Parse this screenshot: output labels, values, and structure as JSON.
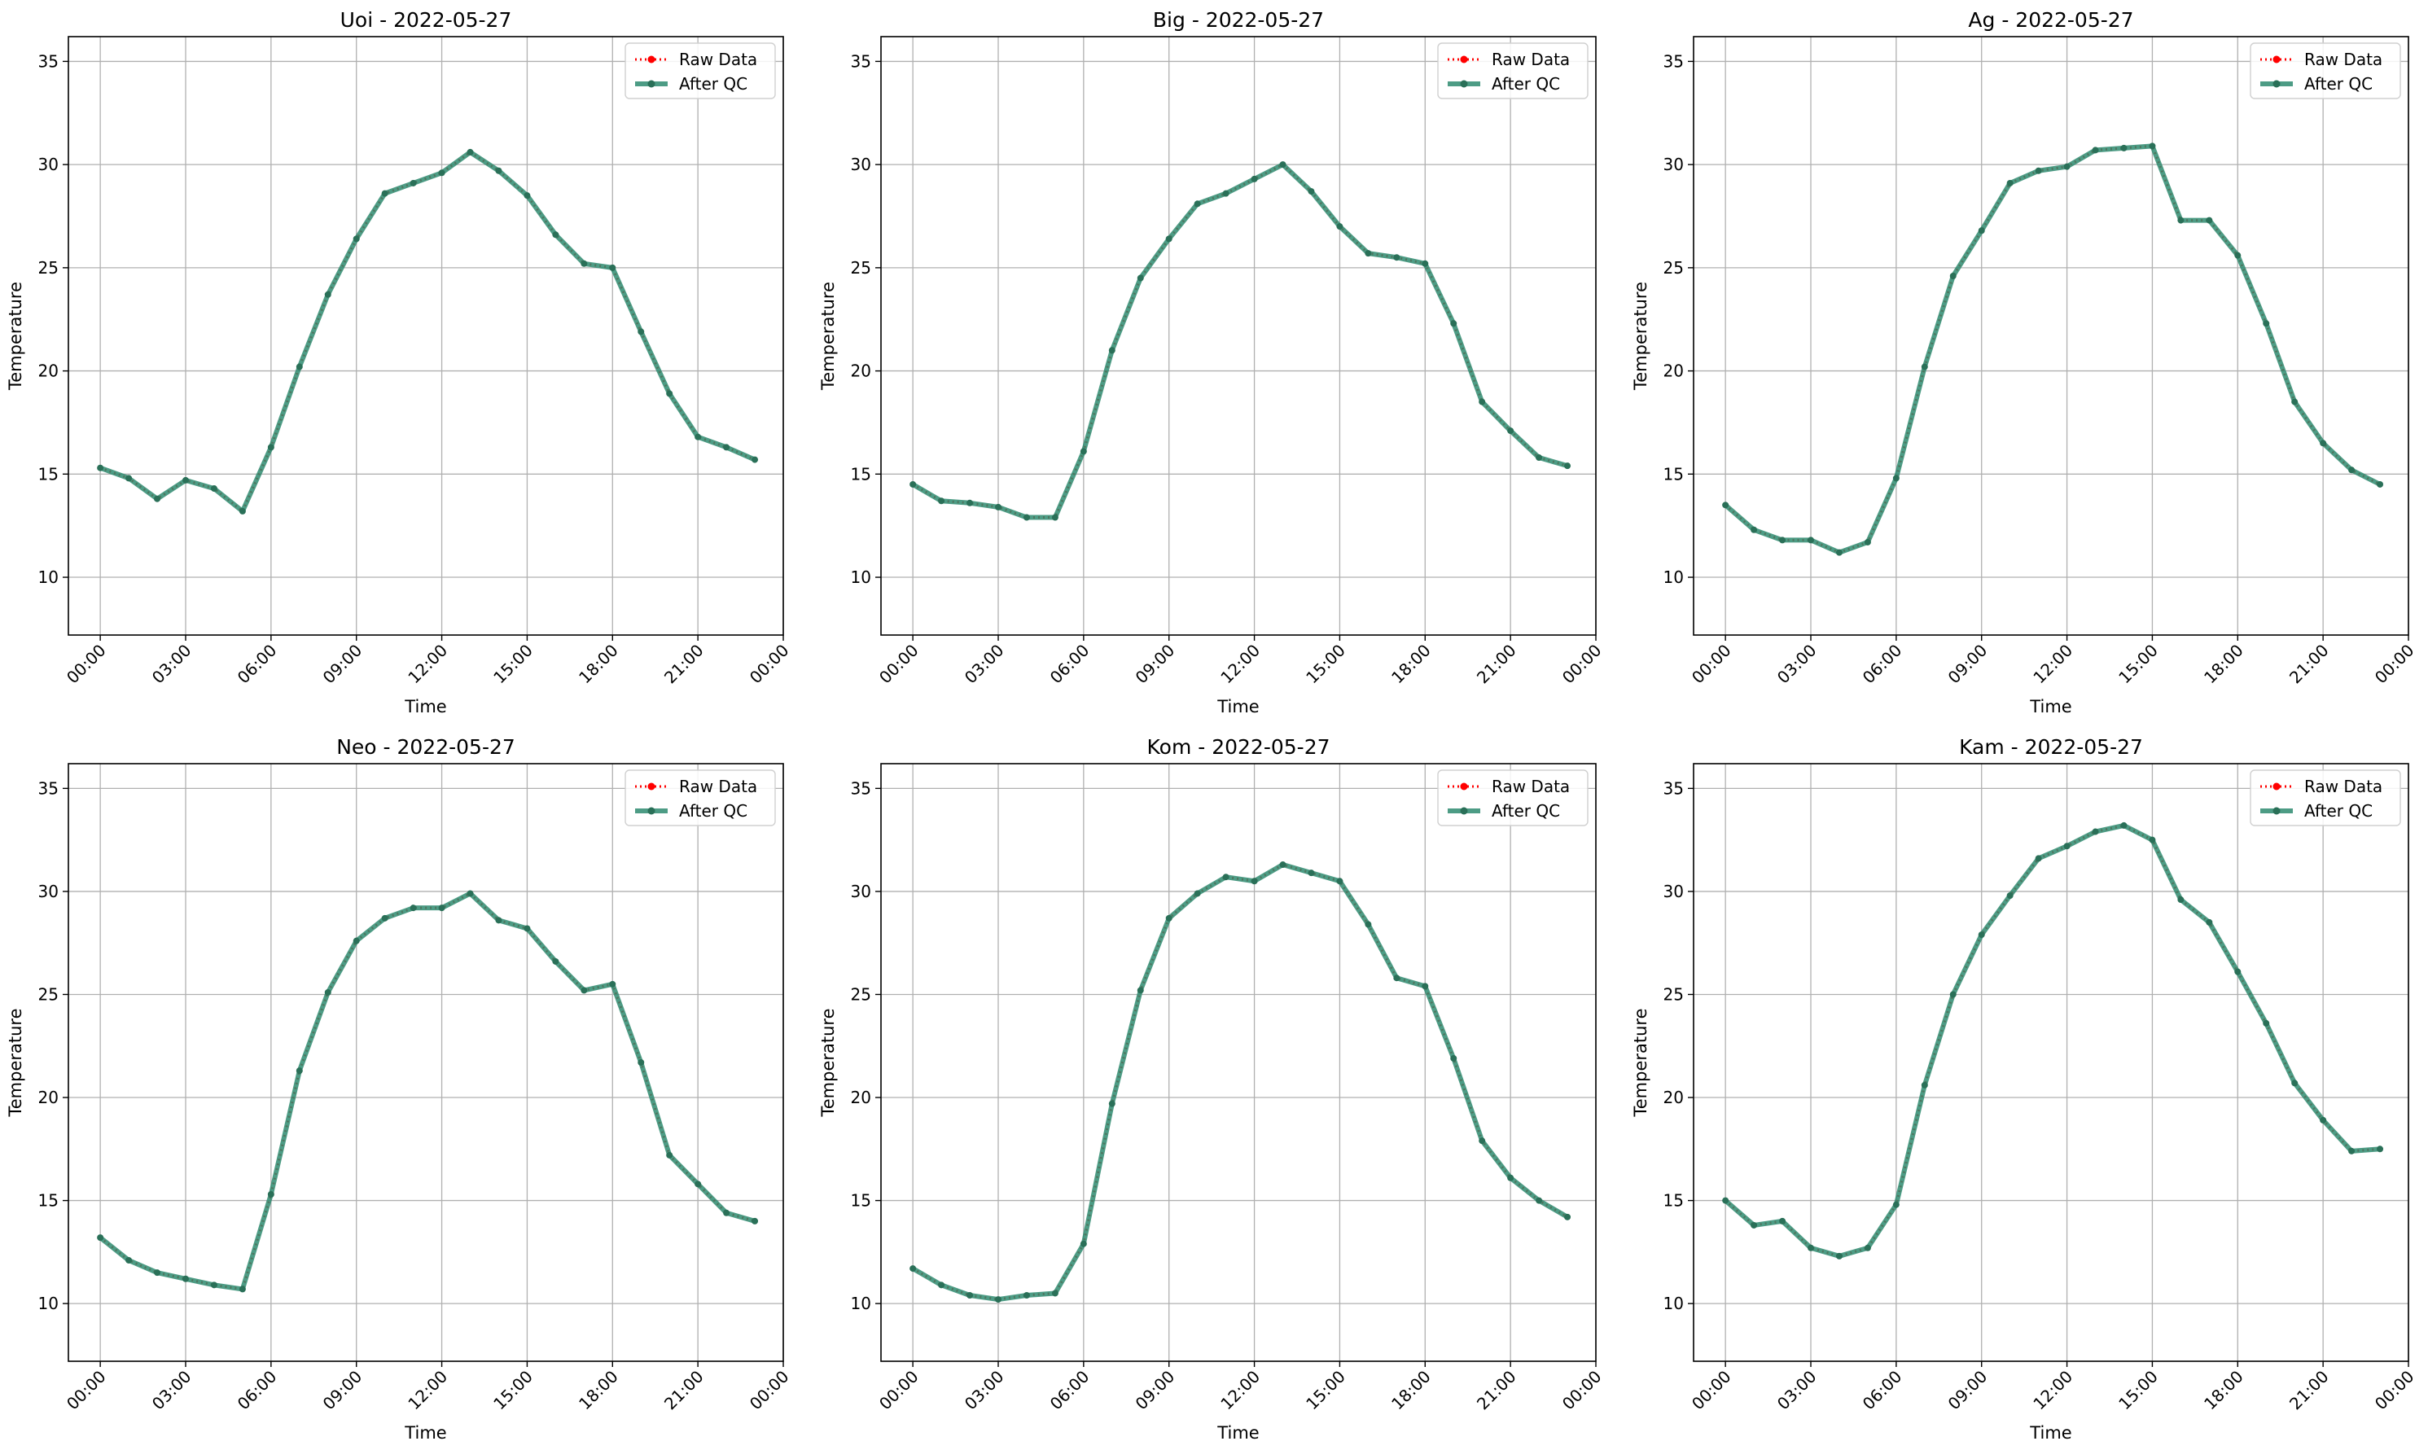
{
  "figure": {
    "background": "#ffffff"
  },
  "style": {
    "raw_color": "#ff0000",
    "qc_color": "#2e8b70",
    "qc_marker_color": "#2a7058",
    "grid_color": "#b0b0b0"
  },
  "chart_data": [
    {
      "type": "line",
      "title": "Uoi - 2022-05-27",
      "xlabel": "Time",
      "ylabel": "Temperature",
      "x_ticks": [
        "00:00",
        "03:00",
        "06:00",
        "09:00",
        "12:00",
        "15:00",
        "18:00",
        "21:00",
        "00:00"
      ],
      "x_hours": [
        0,
        1,
        2,
        3,
        4,
        5,
        6,
        7,
        8,
        9,
        10,
        11,
        12,
        13,
        14,
        15,
        16,
        17,
        18,
        19,
        20,
        21,
        22,
        23
      ],
      "ylim": [
        7.2,
        36.2
      ],
      "y_ticks": [
        10,
        15,
        20,
        25,
        30,
        35
      ],
      "grid": true,
      "legend": "top-right",
      "series": [
        {
          "name": "Raw Data",
          "style": "dotted",
          "color": "#ff0000",
          "values": [
            15.3,
            14.8,
            13.8,
            14.7,
            14.3,
            13.2,
            16.3,
            20.2,
            23.7,
            26.4,
            28.6,
            29.1,
            29.6,
            30.6,
            29.7,
            28.5,
            26.6,
            25.2,
            25.0,
            21.9,
            18.9,
            16.8,
            16.3,
            15.7
          ]
        },
        {
          "name": "After QC",
          "style": "solid",
          "color": "#2e8b70",
          "values": [
            15.3,
            14.8,
            13.8,
            14.7,
            14.3,
            13.2,
            16.3,
            20.2,
            23.7,
            26.4,
            28.6,
            29.1,
            29.6,
            30.6,
            29.7,
            28.5,
            26.6,
            25.2,
            25.0,
            21.9,
            18.9,
            16.8,
            16.3,
            15.7
          ]
        }
      ]
    },
    {
      "type": "line",
      "title": "Big - 2022-05-27",
      "xlabel": "Time",
      "ylabel": "Temperature",
      "x_ticks": [
        "00:00",
        "03:00",
        "06:00",
        "09:00",
        "12:00",
        "15:00",
        "18:00",
        "21:00",
        "00:00"
      ],
      "x_hours": [
        0,
        1,
        2,
        3,
        4,
        5,
        6,
        7,
        8,
        9,
        10,
        11,
        12,
        13,
        14,
        15,
        16,
        17,
        18,
        19,
        20,
        21,
        22,
        23
      ],
      "ylim": [
        7.2,
        36.2
      ],
      "y_ticks": [
        10,
        15,
        20,
        25,
        30,
        35
      ],
      "grid": true,
      "legend": "top-right",
      "series": [
        {
          "name": "Raw Data",
          "style": "dotted",
          "color": "#ff0000",
          "values": [
            14.5,
            13.7,
            13.6,
            13.4,
            12.9,
            12.9,
            16.1,
            21.0,
            24.5,
            26.4,
            28.1,
            28.6,
            29.3,
            30.0,
            28.7,
            27.0,
            25.7,
            25.5,
            25.2,
            22.3,
            18.5,
            17.1,
            15.8,
            15.4
          ]
        },
        {
          "name": "After QC",
          "style": "solid",
          "color": "#2e8b70",
          "values": [
            14.5,
            13.7,
            13.6,
            13.4,
            12.9,
            12.9,
            16.1,
            21.0,
            24.5,
            26.4,
            28.1,
            28.6,
            29.3,
            30.0,
            28.7,
            27.0,
            25.7,
            25.5,
            25.2,
            22.3,
            18.5,
            17.1,
            15.8,
            15.4
          ]
        }
      ]
    },
    {
      "type": "line",
      "title": "Ag - 2022-05-27",
      "xlabel": "Time",
      "ylabel": "Temperature",
      "x_ticks": [
        "00:00",
        "03:00",
        "06:00",
        "09:00",
        "12:00",
        "15:00",
        "18:00",
        "21:00",
        "00:00"
      ],
      "x_hours": [
        0,
        1,
        2,
        3,
        4,
        5,
        6,
        7,
        8,
        9,
        10,
        11,
        12,
        13,
        14,
        15,
        16,
        17,
        18,
        19,
        20,
        21,
        22,
        23
      ],
      "ylim": [
        7.2,
        36.2
      ],
      "y_ticks": [
        10,
        15,
        20,
        25,
        30,
        35
      ],
      "grid": true,
      "legend": "top-right",
      "series": [
        {
          "name": "Raw Data",
          "style": "dotted",
          "color": "#ff0000",
          "values": [
            13.5,
            12.3,
            11.8,
            11.8,
            11.2,
            11.7,
            14.8,
            20.2,
            24.6,
            26.8,
            29.1,
            29.7,
            29.9,
            30.7,
            30.8,
            30.9,
            27.3,
            27.3,
            25.6,
            22.3,
            18.5,
            16.5,
            15.2,
            14.5
          ]
        },
        {
          "name": "After QC",
          "style": "solid",
          "color": "#2e8b70",
          "values": [
            13.5,
            12.3,
            11.8,
            11.8,
            11.2,
            11.7,
            14.8,
            20.2,
            24.6,
            26.8,
            29.1,
            29.7,
            29.9,
            30.7,
            30.8,
            30.9,
            27.3,
            27.3,
            25.6,
            22.3,
            18.5,
            16.5,
            15.2,
            14.5
          ]
        }
      ]
    },
    {
      "type": "line",
      "title": "Neo - 2022-05-27",
      "xlabel": "Time",
      "ylabel": "Temperature",
      "x_ticks": [
        "00:00",
        "03:00",
        "06:00",
        "09:00",
        "12:00",
        "15:00",
        "18:00",
        "21:00",
        "00:00"
      ],
      "x_hours": [
        0,
        1,
        2,
        3,
        4,
        5,
        6,
        7,
        8,
        9,
        10,
        11,
        12,
        13,
        14,
        15,
        16,
        17,
        18,
        19,
        20,
        21,
        22,
        23
      ],
      "ylim": [
        7.2,
        36.2
      ],
      "y_ticks": [
        10,
        15,
        20,
        25,
        30,
        35
      ],
      "grid": true,
      "legend": "top-right",
      "series": [
        {
          "name": "Raw Data",
          "style": "dotted",
          "color": "#ff0000",
          "values": [
            13.2,
            12.1,
            11.5,
            11.2,
            10.9,
            10.7,
            15.3,
            21.3,
            25.1,
            27.6,
            28.7,
            29.2,
            29.2,
            29.9,
            28.6,
            28.2,
            26.6,
            25.2,
            25.5,
            21.7,
            17.2,
            15.8,
            14.4,
            14.0
          ]
        },
        {
          "name": "After QC",
          "style": "solid",
          "color": "#2e8b70",
          "values": [
            13.2,
            12.1,
            11.5,
            11.2,
            10.9,
            10.7,
            15.3,
            21.3,
            25.1,
            27.6,
            28.7,
            29.2,
            29.2,
            29.9,
            28.6,
            28.2,
            26.6,
            25.2,
            25.5,
            21.7,
            17.2,
            15.8,
            14.4,
            14.0
          ]
        }
      ]
    },
    {
      "type": "line",
      "title": "Kom - 2022-05-27",
      "xlabel": "Time",
      "ylabel": "Temperature",
      "x_ticks": [
        "00:00",
        "03:00",
        "06:00",
        "09:00",
        "12:00",
        "15:00",
        "18:00",
        "21:00",
        "00:00"
      ],
      "x_hours": [
        0,
        1,
        2,
        3,
        4,
        5,
        6,
        7,
        8,
        9,
        10,
        11,
        12,
        13,
        14,
        15,
        16,
        17,
        18,
        19,
        20,
        21,
        22,
        23
      ],
      "ylim": [
        7.2,
        36.2
      ],
      "y_ticks": [
        10,
        15,
        20,
        25,
        30,
        35
      ],
      "grid": true,
      "legend": "top-right",
      "series": [
        {
          "name": "Raw Data",
          "style": "dotted",
          "color": "#ff0000",
          "values": [
            11.7,
            10.9,
            10.4,
            10.2,
            10.4,
            10.5,
            12.9,
            19.7,
            25.2,
            28.7,
            29.9,
            30.7,
            30.5,
            31.3,
            30.9,
            30.5,
            28.4,
            25.8,
            25.4,
            21.9,
            17.9,
            16.1,
            15.0,
            14.2
          ]
        },
        {
          "name": "After QC",
          "style": "solid",
          "color": "#2e8b70",
          "values": [
            11.7,
            10.9,
            10.4,
            10.2,
            10.4,
            10.5,
            12.9,
            19.7,
            25.2,
            28.7,
            29.9,
            30.7,
            30.5,
            31.3,
            30.9,
            30.5,
            28.4,
            25.8,
            25.4,
            21.9,
            17.9,
            16.1,
            15.0,
            14.2
          ]
        }
      ]
    },
    {
      "type": "line",
      "title": "Kam - 2022-05-27",
      "xlabel": "Time",
      "ylabel": "Temperature",
      "x_ticks": [
        "00:00",
        "03:00",
        "06:00",
        "09:00",
        "12:00",
        "15:00",
        "18:00",
        "21:00",
        "00:00"
      ],
      "x_hours": [
        0,
        1,
        2,
        3,
        4,
        5,
        6,
        7,
        8,
        9,
        10,
        11,
        12,
        13,
        14,
        15,
        16,
        17,
        18,
        19,
        20,
        21,
        22,
        23
      ],
      "ylim": [
        7.2,
        36.2
      ],
      "y_ticks": [
        10,
        15,
        20,
        25,
        30,
        35
      ],
      "grid": true,
      "legend": "top-right",
      "series": [
        {
          "name": "Raw Data",
          "style": "dotted",
          "color": "#ff0000",
          "values": [
            15.0,
            13.8,
            14.0,
            12.7,
            12.3,
            12.7,
            14.8,
            20.6,
            25.0,
            27.9,
            29.8,
            31.6,
            32.2,
            32.9,
            33.2,
            32.5,
            29.6,
            28.5,
            26.1,
            23.6,
            20.7,
            18.9,
            17.4,
            17.5
          ]
        },
        {
          "name": "After QC",
          "style": "solid",
          "color": "#2e8b70",
          "values": [
            15.0,
            13.8,
            14.0,
            12.7,
            12.3,
            12.7,
            14.8,
            20.6,
            25.0,
            27.9,
            29.8,
            31.6,
            32.2,
            32.9,
            33.2,
            32.5,
            29.6,
            28.5,
            26.1,
            23.6,
            20.7,
            18.9,
            17.4,
            17.5
          ]
        }
      ]
    }
  ]
}
